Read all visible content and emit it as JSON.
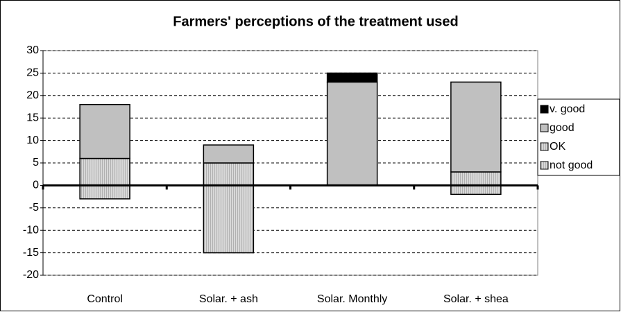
{
  "chart_data": {
    "type": "stacked_bar",
    "title": "Farmers' perceptions of the treatment used",
    "categories": [
      "Control",
      "Solar. + ash",
      "Solar. Monthly",
      "Solar. + shea"
    ],
    "series": [
      {
        "name": "v. good",
        "color": "#000000",
        "values": [
          0,
          0,
          2,
          0
        ]
      },
      {
        "name": "good",
        "color": "#c0c0c0",
        "values": [
          12,
          4,
          23,
          20
        ]
      },
      {
        "name": "OK",
        "color": "#b0b0b0",
        "hatch": true,
        "values": [
          6,
          5,
          0,
          3
        ]
      },
      {
        "name": "not good",
        "color": "#b8b8b8",
        "hatch": true,
        "values": [
          -3,
          -15,
          0,
          -2
        ]
      }
    ],
    "ylim": [
      -20,
      30
    ],
    "yticks": [
      -20,
      -15,
      -10,
      -5,
      0,
      5,
      10,
      15,
      20,
      25,
      30
    ],
    "grid": true,
    "legend": "right"
  }
}
